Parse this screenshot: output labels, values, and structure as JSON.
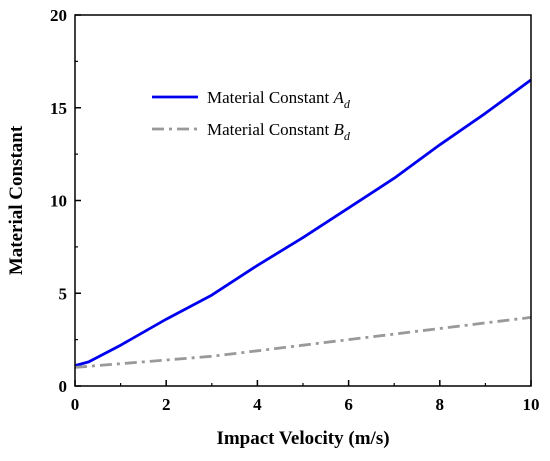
{
  "chart_data": {
    "type": "line",
    "title": "",
    "xlabel": "Impact Velocity (m/s)",
    "ylabel": "Material Constant",
    "xlim": [
      0,
      10
    ],
    "ylim": [
      0,
      20
    ],
    "xticks": [
      0,
      2,
      4,
      6,
      8,
      10
    ],
    "yticks": [
      0,
      5,
      10,
      15,
      20
    ],
    "grid": false,
    "legend_position": "upper-left-center",
    "series": [
      {
        "name": "Material Constant A",
        "name_subscript": "d",
        "color": "#0000ee",
        "style": "solid",
        "x": [
          0,
          0.3,
          1,
          2,
          3,
          4,
          5,
          6,
          7,
          8,
          9,
          10
        ],
        "y": [
          1.1,
          1.3,
          2.2,
          3.6,
          4.9,
          6.5,
          8.0,
          9.6,
          11.2,
          13.0,
          14.7,
          16.5
        ]
      },
      {
        "name": "Material Constant B",
        "name_subscript": "d",
        "color": "#999999",
        "style": "dashdot",
        "x": [
          0,
          1,
          2,
          3,
          4,
          5,
          6,
          7,
          8,
          9,
          10
        ],
        "y": [
          1.0,
          1.2,
          1.4,
          1.6,
          1.9,
          2.2,
          2.5,
          2.8,
          3.1,
          3.4,
          3.7
        ]
      }
    ]
  }
}
